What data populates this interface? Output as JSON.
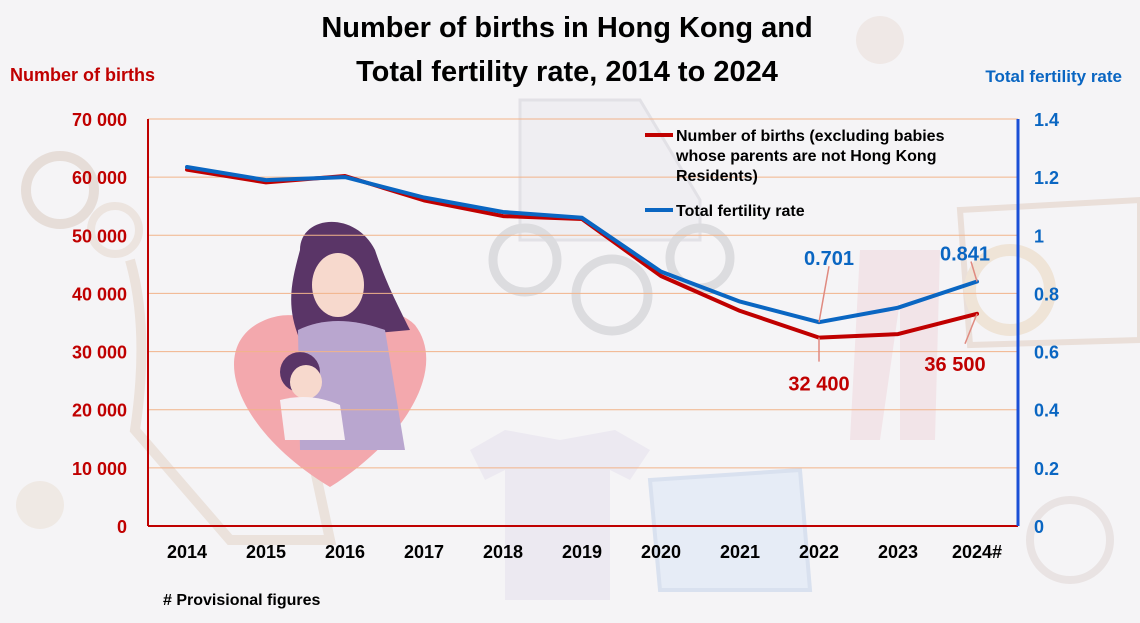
{
  "colors": {
    "births": "#c00000",
    "tfr": "#0a66c2",
    "gridline": "#f2b38a",
    "left_axis_text": "#c00000",
    "right_axis_text": "#0a66c2",
    "right_axis_line": "#1a4fd6"
  },
  "chart_data": {
    "type": "line",
    "title": "Number of births in Hong Kong and Total fertility rate, 2014 to 2024",
    "title_lines": [
      "Number of births in Hong Kong and",
      "Total fertility rate, 2014 to 2024"
    ],
    "categories": [
      "2014",
      "2015",
      "2016",
      "2017",
      "2018",
      "2019",
      "2020",
      "2021",
      "2022",
      "2023",
      "2024#"
    ],
    "y_left": {
      "label": "Number of births",
      "range": [
        0,
        70000
      ],
      "ticks": [
        0,
        10000,
        20000,
        30000,
        40000,
        50000,
        60000,
        70000
      ],
      "tick_labels": [
        "0",
        "10 000",
        "20 000",
        "30 000",
        "40 000",
        "50 000",
        "60 000",
        "70 000"
      ]
    },
    "y_right": {
      "label": "Total fertility rate",
      "range": [
        0,
        1.4
      ],
      "ticks": [
        0,
        0.2,
        0.4,
        0.6,
        0.8,
        1.0,
        1.2,
        1.4
      ],
      "tick_labels": [
        "0",
        "0.2",
        "0.4",
        "0.6",
        "0.8",
        "1",
        "1.2",
        "1.4"
      ]
    },
    "grid": "horizontal",
    "legend_position": "top-right",
    "series": [
      {
        "name": "Number of births (excluding babies whose parents are not Hong Kong Residents)",
        "name_lines": [
          "Number of births (excluding babies",
          "whose parents are not Hong Kong",
          "Residents)"
        ],
        "axis": "left",
        "values": [
          61300,
          59100,
          60200,
          56000,
          53300,
          52800,
          43000,
          37000,
          32400,
          33000,
          36500
        ]
      },
      {
        "name": "Total fertility rate",
        "name_lines": [
          "Total fertility rate"
        ],
        "axis": "right",
        "values": [
          1.235,
          1.19,
          1.2,
          1.13,
          1.08,
          1.06,
          0.875,
          0.772,
          0.701,
          0.751,
          0.841
        ]
      }
    ],
    "annotations": [
      {
        "series": 0,
        "index": 8,
        "text": "32 400"
      },
      {
        "series": 0,
        "index": 10,
        "text": "36 500"
      },
      {
        "series": 1,
        "index": 8,
        "text": "0.701"
      },
      {
        "series": 1,
        "index": 10,
        "text": "0.841"
      }
    ],
    "footnote": "# Provisional figures"
  }
}
